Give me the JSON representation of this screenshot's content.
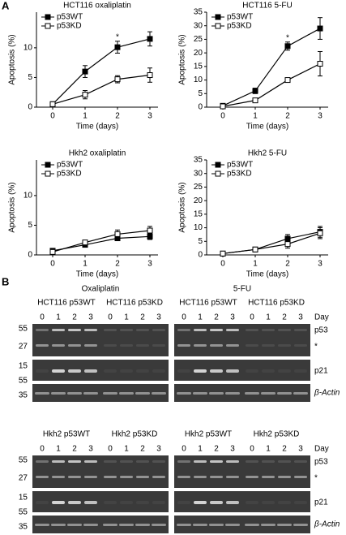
{
  "panel_labels": [
    "A",
    "B"
  ],
  "chart_data": [
    {
      "type": "line",
      "title": "HCT116 oxaliplatin",
      "x_label": "Time (days)",
      "y_label": "Apoptosis (%)",
      "x": [
        0,
        1,
        2,
        3
      ],
      "xlim": [
        -0.5,
        3.25
      ],
      "xticks": [
        0,
        1,
        2,
        3
      ],
      "ylim": [
        0,
        16
      ],
      "yticks": [
        0,
        5,
        10
      ],
      "legend": "upper left",
      "series": [
        {
          "name": "p53WT",
          "color": "#000000",
          "fill": "#000000",
          "values": [
            0.5,
            6,
            10.1,
            11.5
          ],
          "errors": [
            0.4,
            1,
            1,
            1.2
          ]
        },
        {
          "name": "p53KD",
          "color": "#000000",
          "fill": "#ffffff",
          "values": [
            0.5,
            2.1,
            4.7,
            5.4
          ],
          "errors": [
            0.3,
            0.7,
            0.6,
            1.2
          ]
        }
      ],
      "annotations": [
        {
          "text": "*",
          "x": 2
        }
      ]
    },
    {
      "type": "line",
      "title": "HCT116 5-FU",
      "x_label": "Time (days)",
      "y_label": "Apoptosis (%)",
      "x": [
        0,
        1,
        2,
        3
      ],
      "xlim": [
        -0.5,
        3.25
      ],
      "xticks": [
        0,
        1,
        2,
        3
      ],
      "ylim": [
        0,
        35
      ],
      "yticks": [
        0,
        5,
        10,
        15,
        20,
        25,
        30,
        35
      ],
      "legend": "upper left",
      "series": [
        {
          "name": "p53WT",
          "color": "#000000",
          "fill": "#000000",
          "values": [
            0.5,
            6,
            22.5,
            29
          ],
          "errors": [
            0.5,
            1,
            1.5,
            4
          ]
        },
        {
          "name": "p53KD",
          "color": "#000000",
          "fill": "#ffffff",
          "values": [
            0.3,
            2.5,
            10,
            16
          ],
          "errors": [
            0.3,
            0.3,
            0.5,
            4.5
          ]
        }
      ],
      "annotations": [
        {
          "text": "*",
          "x": 2
        }
      ]
    },
    {
      "type": "line",
      "title": "Hkh2 oxaliplatin",
      "x_label": "Time (days)",
      "y_label": "Apoptosis (%)",
      "x": [
        0,
        1,
        2,
        3
      ],
      "xlim": [
        -0.5,
        3.25
      ],
      "xticks": [
        0,
        1,
        2,
        3
      ],
      "ylim": [
        0,
        16
      ],
      "yticks": [
        0,
        5,
        10
      ],
      "legend": "upper left",
      "series": [
        {
          "name": "p53WT",
          "color": "#000000",
          "fill": "#000000",
          "values": [
            0.7,
            1.7,
            2.8,
            3.1
          ],
          "errors": [
            0.3,
            0.3,
            0.4,
            0.5
          ]
        },
        {
          "name": "p53KD",
          "color": "#000000",
          "fill": "#ffffff",
          "values": [
            0.5,
            2.1,
            3.5,
            4.1
          ],
          "errors": [
            0.3,
            0.3,
            0.7,
            0.7
          ]
        }
      ]
    },
    {
      "type": "line",
      "title": "Hkh2  5-FU",
      "x_label": "Time (days)",
      "y_label": "Apoptosis (%)",
      "x": [
        0,
        1,
        2,
        3
      ],
      "xlim": [
        -0.5,
        3.25
      ],
      "xticks": [
        0,
        1,
        2,
        3
      ],
      "ylim": [
        0,
        35
      ],
      "yticks": [
        0,
        5,
        10,
        15,
        20,
        25,
        30,
        35
      ],
      "legend": "upper left",
      "series": [
        {
          "name": "p53WT",
          "color": "#000000",
          "fill": "#000000",
          "values": [
            0.5,
            2,
            6,
            8.5
          ],
          "errors": [
            0.3,
            0.3,
            1.5,
            2
          ]
        },
        {
          "name": "p53KD",
          "color": "#000000",
          "fill": "#ffffff",
          "values": [
            0.5,
            2,
            4,
            8
          ],
          "errors": [
            0.3,
            0.3,
            1.5,
            2
          ]
        }
      ]
    }
  ],
  "blots": {
    "rows": [
      {
        "treatments": [
          "Oxaliplatin",
          "5-FU"
        ],
        "lane_axis": "Day",
        "markers": [
          55,
          27,
          15,
          55,
          35
        ],
        "bands": [
          "p53",
          "*",
          "p21",
          "β-Actin"
        ],
        "panels": [
          {
            "groups": [
              {
                "label": "HCT116 p53WT",
                "lanes": [
                  0,
                  1,
                  2,
                  3
                ]
              },
              {
                "label": "HCT116 p53KD",
                "lanes": [
                  0,
                  1,
                  2,
                  3
                ]
              }
            ]
          },
          {
            "groups": [
              {
                "label": "HCT116 p53WT",
                "lanes": [
                  0,
                  1,
                  2,
                  3
                ]
              },
              {
                "label": "HCT116 p53KD",
                "lanes": [
                  0,
                  1,
                  2,
                  3
                ]
              }
            ]
          }
        ]
      },
      {
        "lane_axis": "Day",
        "markers": [
          55,
          27,
          15,
          55,
          35
        ],
        "bands": [
          "p53",
          "*",
          "p21",
          "β-Actin"
        ],
        "panels": [
          {
            "groups": [
              {
                "label": "Hkh2 p53WT",
                "lanes": [
                  0,
                  1,
                  2,
                  3
                ]
              },
              {
                "label": "Hkh2 p53KD",
                "lanes": [
                  0,
                  1,
                  2,
                  3
                ]
              }
            ]
          },
          {
            "groups": [
              {
                "label": "Hkh2 p53WT",
                "lanes": [
                  0,
                  1,
                  2,
                  3
                ]
              },
              {
                "label": "Hkh2 p53KD",
                "lanes": [
                  0,
                  1,
                  2,
                  3
                ]
              }
            ]
          }
        ]
      }
    ]
  }
}
